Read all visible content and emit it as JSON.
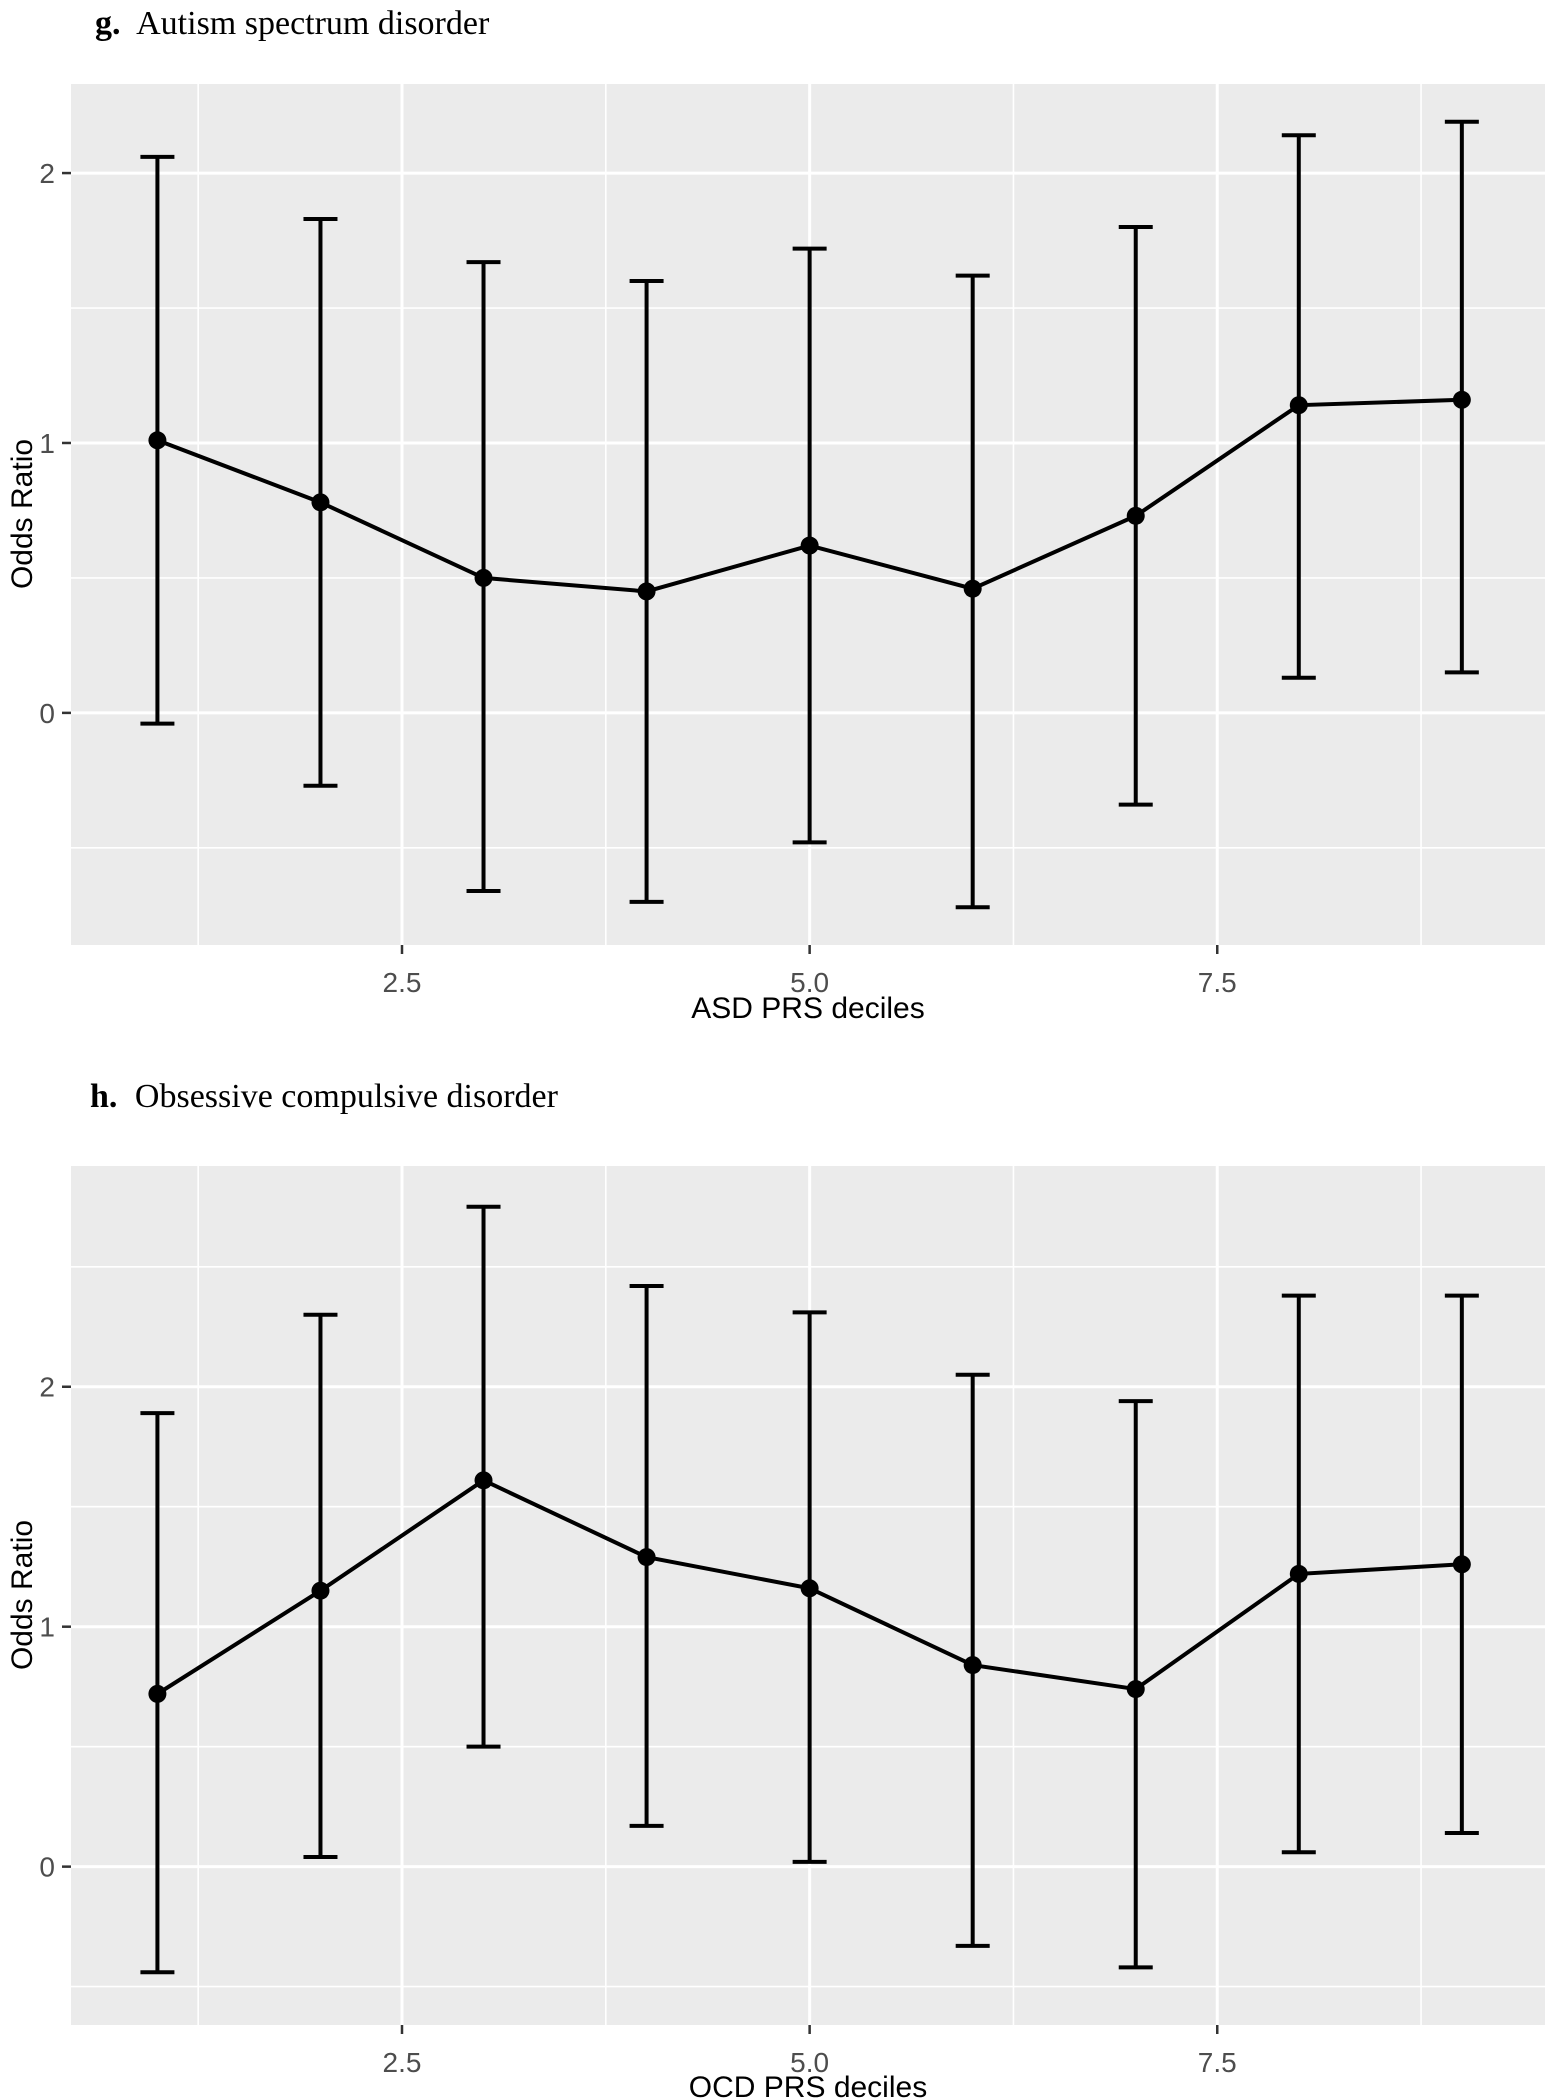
{
  "page": {
    "background": "#ffffff"
  },
  "chart_data": [
    {
      "type": "scatter",
      "title": {
        "prefix": "g.",
        "text": "Autism spectrum disorder"
      },
      "xlabel": "ASD PRS deciles",
      "ylabel": "Odds Ratio",
      "x": [
        1,
        2,
        3,
        4,
        5,
        6,
        7,
        8,
        9
      ],
      "series": [
        {
          "name": "odds_ratio",
          "values": [
            1.01,
            0.78,
            0.5,
            0.45,
            0.62,
            0.46,
            0.73,
            1.14,
            1.16
          ]
        },
        {
          "name": "ci_lower",
          "values": [
            -0.04,
            -0.27,
            -0.66,
            -0.7,
            -0.48,
            -0.72,
            -0.34,
            0.13,
            0.15
          ]
        },
        {
          "name": "ci_upper",
          "values": [
            2.06,
            1.83,
            1.67,
            1.6,
            1.72,
            1.62,
            1.8,
            2.14,
            2.19
          ]
        }
      ],
      "x_ticks": {
        "values": [
          2.5,
          5.0,
          7.5
        ],
        "labels": [
          "2.5",
          "5.0",
          "7.5"
        ]
      },
      "x_minor": [
        1.25,
        3.75,
        6.25,
        8.75
      ],
      "y_ticks": {
        "values": [
          0,
          1,
          2
        ],
        "labels": [
          "0",
          "1",
          "2"
        ]
      },
      "y_minor": [
        -0.5,
        0.5,
        1.5
      ],
      "xlim": [
        0.47,
        9.51
      ],
      "ylim": [
        -0.86,
        2.33
      ],
      "grid": true,
      "legend": "none",
      "colors": {
        "panel_bg": "#ebebeb",
        "grid": "#ffffff",
        "marks": "#000000",
        "tick_marks": "#333333",
        "tick_labels": "#4d4d4d",
        "axis_titles": "#000000"
      }
    },
    {
      "type": "scatter",
      "title": {
        "prefix": "h.",
        "text": "Obsessive compulsive disorder"
      },
      "xlabel": "OCD PRS deciles",
      "ylabel": "Odds Ratio",
      "x": [
        1,
        2,
        3,
        4,
        5,
        6,
        7,
        8,
        9
      ],
      "series": [
        {
          "name": "odds_ratio",
          "values": [
            0.72,
            1.15,
            1.61,
            1.29,
            1.16,
            0.84,
            0.74,
            1.22,
            1.26
          ]
        },
        {
          "name": "ci_lower",
          "values": [
            -0.44,
            0.04,
            0.5,
            0.17,
            0.02,
            -0.33,
            -0.42,
            0.06,
            0.14
          ]
        },
        {
          "name": "ci_upper",
          "values": [
            1.89,
            2.3,
            2.75,
            2.42,
            2.31,
            2.05,
            1.94,
            2.38,
            2.38
          ]
        }
      ],
      "x_ticks": {
        "values": [
          2.5,
          5.0,
          7.5
        ],
        "labels": [
          "2.5",
          "5.0",
          "7.5"
        ]
      },
      "x_minor": [
        1.25,
        3.75,
        6.25,
        8.75
      ],
      "y_ticks": {
        "values": [
          0,
          1,
          2
        ],
        "labels": [
          "0",
          "1",
          "2"
        ]
      },
      "y_minor": [
        -0.5,
        0.5,
        1.5,
        2.5
      ],
      "xlim": [
        0.47,
        9.51
      ],
      "ylim": [
        -0.66,
        2.92
      ],
      "grid": true,
      "legend": "none",
      "colors": {
        "panel_bg": "#ebebeb",
        "grid": "#ffffff",
        "marks": "#000000",
        "tick_marks": "#333333",
        "tick_labels": "#4d4d4d",
        "axis_titles": "#000000"
      }
    }
  ]
}
